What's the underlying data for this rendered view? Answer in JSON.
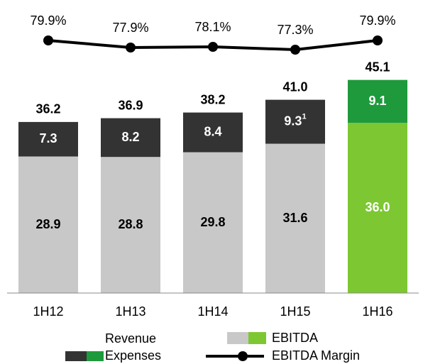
{
  "chart_data": {
    "type": "bar",
    "categories": [
      "1H12",
      "1H13",
      "1H14",
      "1H15",
      "1H16"
    ],
    "series": [
      {
        "name": "EBITDA",
        "colors": [
          "#c8c8c8",
          "#c8c8c8",
          "#c8c8c8",
          "#c8c8c8",
          "#7dc832"
        ],
        "values": [
          28.9,
          28.8,
          29.8,
          31.6,
          36.0
        ],
        "value_labels": [
          "28.9",
          "28.8",
          "29.8",
          "31.6",
          "36.0"
        ]
      },
      {
        "name": "Expenses",
        "colors": [
          "#333333",
          "#333333",
          "#333333",
          "#333333",
          "#1e9a3c"
        ],
        "values": [
          7.3,
          8.2,
          8.4,
          9.3,
          9.1
        ],
        "footnotes": [
          null,
          null,
          null,
          "1",
          null
        ]
      },
      {
        "name": "EBITDA Margin",
        "color": "#000000",
        "axis": "y2",
        "values": [
          79.9,
          77.9,
          78.1,
          77.3,
          79.9
        ],
        "value_labels": [
          "79.9%",
          "77.9%",
          "78.1%",
          "77.3%",
          "79.9%"
        ]
      }
    ],
    "totals": [
      36.2,
      36.9,
      38.2,
      41.0,
      45.1
    ],
    "total_labels": [
      "36.2",
      "36.9",
      "38.2",
      "41.0",
      "45.1"
    ],
    "legend_extra": "Revenue",
    "ylim": [
      0,
      50
    ],
    "y2lim": [
      70,
      85
    ]
  }
}
